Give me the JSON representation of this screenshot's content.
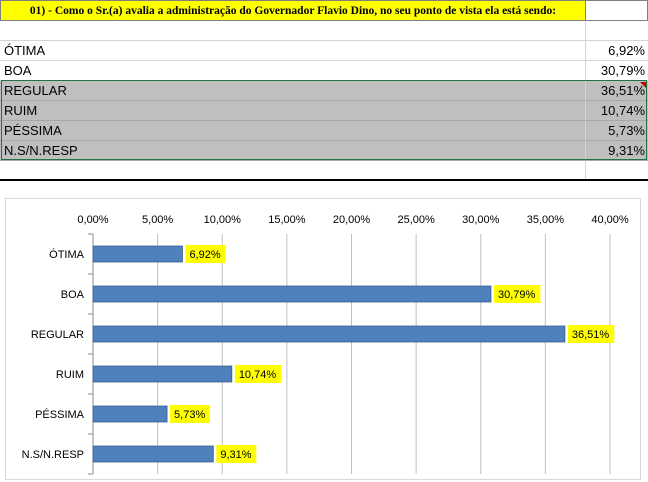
{
  "sheet": {
    "title": "01) - Como o Sr.(a) avalia a administração do Governador Flavio Dino, no seu ponto de vista  ela está sendo:",
    "rows": [
      {
        "label": "ÓTIMA",
        "value": "6,92%"
      },
      {
        "label": "BOA",
        "value": "30,79%"
      },
      {
        "label": "REGULAR",
        "value": "36,51%"
      },
      {
        "label": "RUIM",
        "value": "10,74%"
      },
      {
        "label": "PÉSSIMA",
        "value": "5,73%"
      },
      {
        "label": "N.S/N.RESP",
        "value": "9,31%"
      }
    ]
  },
  "colors": {
    "bar": "#4f81bd",
    "bar_border": "#385d8a",
    "data_label_bg": "#ffff00",
    "title_bg": "#ffff00",
    "gray_rows": "#bfbfbf",
    "selection": "#217346"
  },
  "chart_data": {
    "type": "bar",
    "orientation": "horizontal",
    "categories": [
      "ÓTIMA",
      "BOA",
      "REGULAR",
      "RUIM",
      "PÉSSIMA",
      "N.S/N.RESP"
    ],
    "values": [
      6.92,
      30.79,
      36.51,
      10.74,
      5.73,
      9.31
    ],
    "data_labels": [
      "6,92%",
      "30,79%",
      "36,51%",
      "10,74%",
      "5,73%",
      "9,31%"
    ],
    "xlim": [
      0,
      40
    ],
    "x_ticks": [
      0,
      5,
      10,
      15,
      20,
      25,
      30,
      35,
      40
    ],
    "x_tick_labels": [
      "0,00%",
      "5,00%",
      "10,00%",
      "15,00%",
      "20,00%",
      "25,00%",
      "30,00%",
      "35,00%",
      "40,00%"
    ],
    "axis_position": "top",
    "grid": true,
    "legend": "none"
  }
}
